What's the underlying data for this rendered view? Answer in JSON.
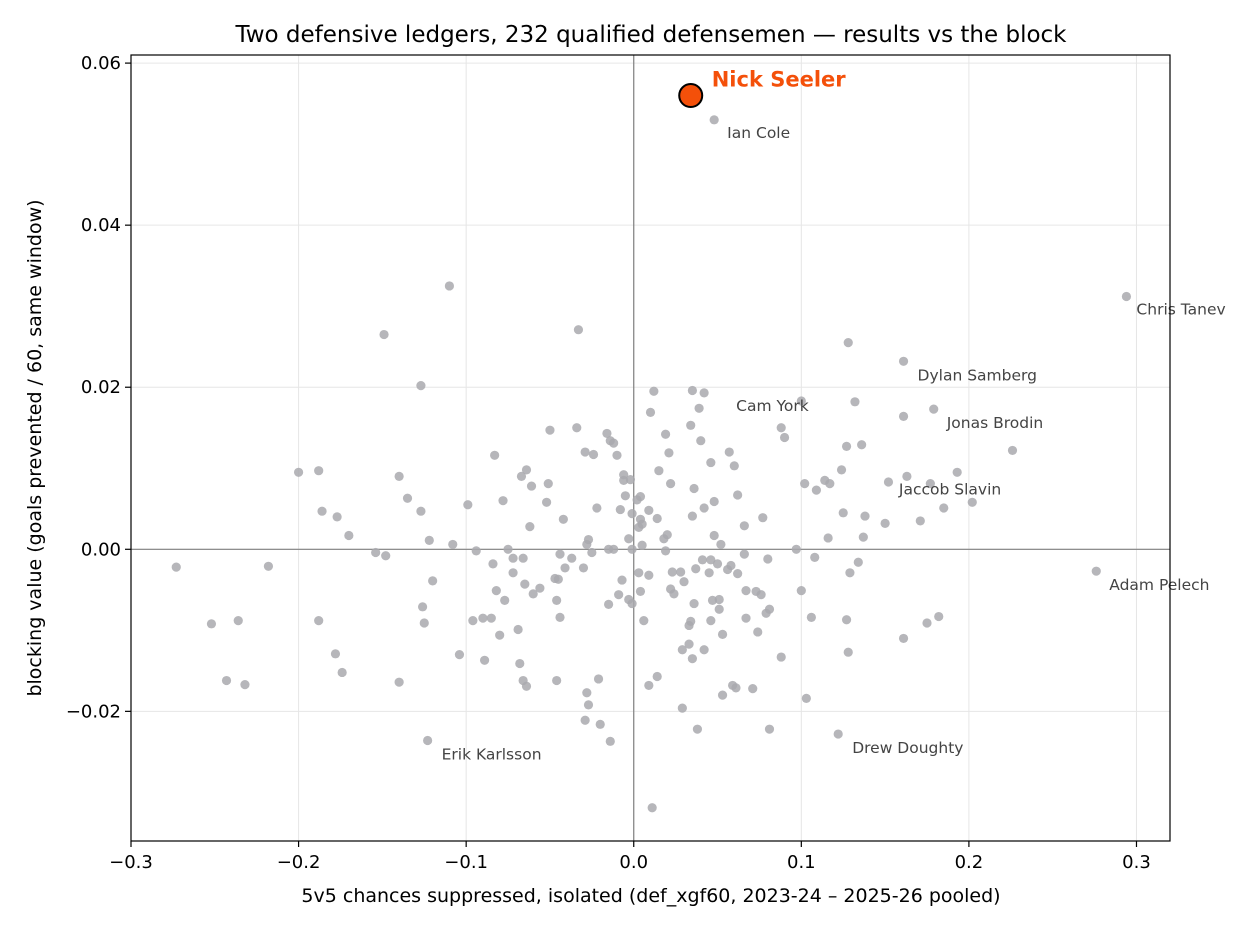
{
  "chart_data": {
    "type": "scatter",
    "title": "Two defensive ledgers, 232 qualified defensemen — results vs the block",
    "xlabel": "5v5 chances suppressed, isolated (def_xgf60, 2023-24 – 2025-26 pooled)",
    "ylabel": "blocking value (goals prevented / 60, same window)",
    "xlim": [
      -0.3,
      0.32
    ],
    "ylim": [
      -0.036,
      0.061
    ],
    "xticks": [
      -0.3,
      -0.2,
      -0.1,
      0.0,
      0.1,
      0.2,
      0.3
    ],
    "xtick_labels": [
      "−0.3",
      "−0.2",
      "−0.1",
      "0.0",
      "0.1",
      "0.2",
      "0.3"
    ],
    "yticks": [
      -0.02,
      0.0,
      0.02,
      0.04,
      0.06
    ],
    "ytick_labels": [
      "−0.02",
      "0.00",
      "0.02",
      "0.04",
      "0.06"
    ],
    "grid": true,
    "reference_lines": {
      "x": 0,
      "y": 0
    },
    "point_color": "#a9a9ae",
    "highlight_color": "#f4500a",
    "highlight": {
      "name": "Nick Seeler",
      "x": 0.034,
      "y": 0.056
    },
    "labeled_points": [
      {
        "name": "Ian Cole",
        "x": 0.048,
        "y": 0.053
      },
      {
        "name": "Chris Tanev",
        "x": 0.294,
        "y": 0.0312
      },
      {
        "name": "Dylan Samberg",
        "x": 0.161,
        "y": 0.0232
      },
      {
        "name": "Cam York",
        "x": 0.042,
        "y": 0.0193
      },
      {
        "name": "Jonas Brodin",
        "x": 0.179,
        "y": 0.0173
      },
      {
        "name": "Jaccob Slavin",
        "x": 0.163,
        "y": 0.009
      },
      {
        "name": "Adam Pelech",
        "x": 0.276,
        "y": -0.0027
      },
      {
        "name": "Drew Doughty",
        "x": 0.122,
        "y": -0.0228
      },
      {
        "name": "Erik Karlsson",
        "x": -0.123,
        "y": -0.0236
      }
    ],
    "points": [
      [
        -0.273,
        -0.0022
      ],
      [
        -0.252,
        -0.0092
      ],
      [
        -0.243,
        -0.0162
      ],
      [
        -0.236,
        -0.0088
      ],
      [
        -0.232,
        -0.0167
      ],
      [
        -0.218,
        -0.0021
      ],
      [
        -0.2,
        0.0095
      ],
      [
        -0.188,
        0.0097
      ],
      [
        -0.188,
        -0.0088
      ],
      [
        -0.186,
        0.0047
      ],
      [
        -0.178,
        -0.0129
      ],
      [
        -0.177,
        0.004
      ],
      [
        -0.174,
        -0.0152
      ],
      [
        -0.17,
        0.0017
      ],
      [
        -0.154,
        -0.0004
      ],
      [
        -0.149,
        0.0265
      ],
      [
        -0.148,
        -0.0008
      ],
      [
        -0.14,
        0.009
      ],
      [
        -0.14,
        -0.0164
      ],
      [
        -0.135,
        0.0063
      ],
      [
        -0.127,
        0.0202
      ],
      [
        -0.127,
        0.0047
      ],
      [
        -0.126,
        -0.0071
      ],
      [
        -0.125,
        -0.0091
      ],
      [
        -0.122,
        0.0011
      ],
      [
        -0.12,
        -0.0039
      ],
      [
        -0.11,
        0.0325
      ],
      [
        -0.108,
        0.0006
      ],
      [
        -0.104,
        -0.013
      ],
      [
        -0.099,
        0.0055
      ],
      [
        -0.096,
        -0.0088
      ],
      [
        -0.094,
        -0.0002
      ],
      [
        -0.09,
        -0.0085
      ],
      [
        -0.089,
        -0.0137
      ],
      [
        -0.085,
        -0.0085
      ],
      [
        -0.084,
        -0.0018
      ],
      [
        -0.083,
        0.0116
      ],
      [
        -0.082,
        -0.0051
      ],
      [
        -0.08,
        -0.0106
      ],
      [
        -0.078,
        0.006
      ],
      [
        -0.077,
        -0.0063
      ],
      [
        -0.075,
        0.0
      ],
      [
        -0.072,
        -0.0011
      ],
      [
        -0.072,
        -0.0029
      ],
      [
        -0.069,
        -0.0099
      ],
      [
        -0.068,
        -0.0141
      ],
      [
        -0.067,
        0.009
      ],
      [
        -0.066,
        -0.0011
      ],
      [
        -0.066,
        -0.0162
      ],
      [
        -0.065,
        -0.0043
      ],
      [
        -0.064,
        0.0098
      ],
      [
        -0.064,
        -0.0169
      ],
      [
        -0.062,
        0.0028
      ],
      [
        -0.061,
        0.0078
      ],
      [
        -0.06,
        -0.0055
      ],
      [
        -0.056,
        -0.0048
      ],
      [
        -0.052,
        0.0058
      ],
      [
        -0.051,
        0.0081
      ],
      [
        -0.05,
        0.0147
      ],
      [
        -0.047,
        -0.0036
      ],
      [
        -0.046,
        -0.0063
      ],
      [
        -0.046,
        -0.0162
      ],
      [
        -0.045,
        -0.0037
      ],
      [
        -0.044,
        -0.0006
      ],
      [
        -0.044,
        -0.0084
      ],
      [
        -0.042,
        0.0037
      ],
      [
        -0.041,
        -0.0023
      ],
      [
        -0.037,
        -0.0011
      ],
      [
        -0.034,
        0.015
      ],
      [
        -0.033,
        0.0271
      ],
      [
        -0.03,
        -0.0023
      ],
      [
        -0.029,
        0.012
      ],
      [
        -0.029,
        -0.0211
      ],
      [
        -0.028,
        0.0006
      ],
      [
        -0.028,
        -0.0177
      ],
      [
        -0.027,
        0.0012
      ],
      [
        -0.027,
        -0.0192
      ],
      [
        -0.025,
        -0.0004
      ],
      [
        -0.024,
        0.0117
      ],
      [
        -0.022,
        0.0051
      ],
      [
        -0.021,
        -0.016
      ],
      [
        -0.02,
        -0.0216
      ],
      [
        -0.016,
        0.0143
      ],
      [
        -0.015,
        0.0
      ],
      [
        -0.015,
        -0.0068
      ],
      [
        -0.014,
        0.0134
      ],
      [
        -0.014,
        -0.0237
      ],
      [
        -0.012,
        0.0131
      ],
      [
        -0.012,
        0.0
      ],
      [
        -0.01,
        0.0116
      ],
      [
        -0.009,
        -0.0056
      ],
      [
        -0.008,
        0.0049
      ],
      [
        -0.007,
        -0.0038
      ],
      [
        -0.006,
        0.0085
      ],
      [
        -0.006,
        0.0092
      ],
      [
        -0.005,
        0.0066
      ],
      [
        -0.003,
        0.0013
      ],
      [
        -0.003,
        -0.0062
      ],
      [
        -0.002,
        0.0086
      ],
      [
        -0.001,
        0.0044
      ],
      [
        -0.001,
        0.0
      ],
      [
        -0.001,
        -0.0067
      ],
      [
        0.002,
        0.0061
      ],
      [
        0.003,
        0.0027
      ],
      [
        0.003,
        -0.0029
      ],
      [
        0.004,
        0.0065
      ],
      [
        0.004,
        0.0037
      ],
      [
        0.004,
        -0.0052
      ],
      [
        0.005,
        0.0031
      ],
      [
        0.005,
        0.0005
      ],
      [
        0.006,
        -0.0088
      ],
      [
        0.009,
        0.0048
      ],
      [
        0.009,
        -0.0032
      ],
      [
        0.009,
        -0.0168
      ],
      [
        0.01,
        0.0169
      ],
      [
        0.011,
        -0.0319
      ],
      [
        0.012,
        0.0195
      ],
      [
        0.014,
        0.0038
      ],
      [
        0.014,
        -0.0157
      ],
      [
        0.015,
        0.0097
      ],
      [
        0.018,
        0.0013
      ],
      [
        0.019,
        0.0142
      ],
      [
        0.019,
        -0.0002
      ],
      [
        0.02,
        0.0018
      ],
      [
        0.021,
        0.0119
      ],
      [
        0.022,
        0.0081
      ],
      [
        0.022,
        -0.0049
      ],
      [
        0.023,
        -0.0028
      ],
      [
        0.024,
        -0.0055
      ],
      [
        0.028,
        -0.0028
      ],
      [
        0.029,
        -0.0124
      ],
      [
        0.029,
        -0.0196
      ],
      [
        0.03,
        -0.004
      ],
      [
        0.033,
        -0.0094
      ],
      [
        0.033,
        -0.0117
      ],
      [
        0.034,
        0.0153
      ],
      [
        0.034,
        -0.0089
      ],
      [
        0.035,
        0.0196
      ],
      [
        0.035,
        0.0041
      ],
      [
        0.035,
        -0.0135
      ],
      [
        0.036,
        0.0075
      ],
      [
        0.036,
        -0.0067
      ],
      [
        0.037,
        -0.0024
      ],
      [
        0.038,
        -0.0222
      ],
      [
        0.039,
        0.0174
      ],
      [
        0.04,
        0.0134
      ],
      [
        0.041,
        -0.0013
      ],
      [
        0.042,
        0.0051
      ],
      [
        0.042,
        -0.0124
      ],
      [
        0.045,
        -0.0029
      ],
      [
        0.046,
        0.0107
      ],
      [
        0.046,
        -0.0013
      ],
      [
        0.046,
        -0.0088
      ],
      [
        0.047,
        -0.0063
      ],
      [
        0.048,
        0.0059
      ],
      [
        0.048,
        0.0017
      ],
      [
        0.05,
        -0.0018
      ],
      [
        0.051,
        -0.0074
      ],
      [
        0.051,
        -0.0062
      ],
      [
        0.052,
        0.0006
      ],
      [
        0.053,
        -0.0105
      ],
      [
        0.053,
        -0.018
      ],
      [
        0.056,
        -0.0025
      ],
      [
        0.057,
        0.012
      ],
      [
        0.058,
        -0.002
      ],
      [
        0.059,
        -0.0168
      ],
      [
        0.06,
        0.0103
      ],
      [
        0.061,
        -0.0171
      ],
      [
        0.062,
        0.0067
      ],
      [
        0.062,
        -0.003
      ],
      [
        0.066,
        0.0029
      ],
      [
        0.066,
        -0.0006
      ],
      [
        0.067,
        -0.0051
      ],
      [
        0.067,
        -0.0085
      ],
      [
        0.071,
        -0.0172
      ],
      [
        0.073,
        -0.0052
      ],
      [
        0.074,
        -0.0102
      ],
      [
        0.076,
        -0.0056
      ],
      [
        0.077,
        0.0039
      ],
      [
        0.079,
        -0.0079
      ],
      [
        0.08,
        -0.0012
      ],
      [
        0.081,
        -0.0074
      ],
      [
        0.081,
        -0.0222
      ],
      [
        0.088,
        0.015
      ],
      [
        0.088,
        -0.0133
      ],
      [
        0.09,
        0.0138
      ],
      [
        0.097,
        0.0
      ],
      [
        0.1,
        0.0183
      ],
      [
        0.1,
        -0.0051
      ],
      [
        0.102,
        0.0081
      ],
      [
        0.103,
        -0.0184
      ],
      [
        0.106,
        -0.0084
      ],
      [
        0.108,
        -0.001
      ],
      [
        0.109,
        0.0073
      ],
      [
        0.114,
        0.0085
      ],
      [
        0.116,
        0.0014
      ],
      [
        0.117,
        0.0081
      ],
      [
        0.124,
        0.0098
      ],
      [
        0.125,
        0.0045
      ],
      [
        0.127,
        0.0127
      ],
      [
        0.127,
        -0.0087
      ],
      [
        0.128,
        0.0255
      ],
      [
        0.128,
        -0.0127
      ],
      [
        0.129,
        -0.0029
      ],
      [
        0.132,
        0.0182
      ],
      [
        0.134,
        -0.0016
      ],
      [
        0.136,
        0.0129
      ],
      [
        0.137,
        0.0015
      ],
      [
        0.138,
        0.0041
      ],
      [
        0.15,
        0.0032
      ],
      [
        0.152,
        0.0083
      ],
      [
        0.161,
        0.0164
      ],
      [
        0.161,
        -0.011
      ],
      [
        0.171,
        0.0035
      ],
      [
        0.175,
        -0.0091
      ],
      [
        0.177,
        0.0081
      ],
      [
        0.182,
        -0.0083
      ],
      [
        0.185,
        0.0051
      ],
      [
        0.193,
        0.0095
      ],
      [
        0.202,
        0.0058
      ],
      [
        0.226,
        0.0122
      ]
    ]
  }
}
